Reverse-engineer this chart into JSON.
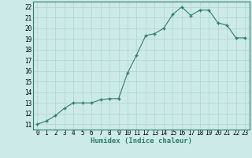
{
  "x": [
    0,
    1,
    2,
    3,
    4,
    5,
    6,
    7,
    8,
    9,
    10,
    11,
    12,
    13,
    14,
    15,
    16,
    17,
    18,
    19,
    20,
    21,
    22,
    23
  ],
  "y": [
    11.0,
    11.3,
    11.8,
    12.5,
    13.0,
    13.0,
    13.0,
    13.3,
    13.4,
    13.4,
    15.8,
    17.5,
    19.3,
    19.5,
    20.0,
    21.3,
    22.0,
    21.2,
    21.7,
    21.7,
    20.5,
    20.3,
    19.1,
    19.1
  ],
  "line_color": "#2e7d6e",
  "marker": "P",
  "marker_size": 2.5,
  "bg_color": "#cceae7",
  "grid_color": "#b0d4d0",
  "xlabel": "Humidex (Indice chaleur)",
  "xlim": [
    -0.5,
    23.5
  ],
  "ylim": [
    10.5,
    22.5
  ],
  "yticks": [
    11,
    12,
    13,
    14,
    15,
    16,
    17,
    18,
    19,
    20,
    21,
    22
  ],
  "xticks": [
    0,
    1,
    2,
    3,
    4,
    5,
    6,
    7,
    8,
    9,
    10,
    11,
    12,
    13,
    14,
    15,
    16,
    17,
    18,
    19,
    20,
    21,
    22,
    23
  ],
  "label_fontsize": 6.5,
  "tick_fontsize": 5.5
}
